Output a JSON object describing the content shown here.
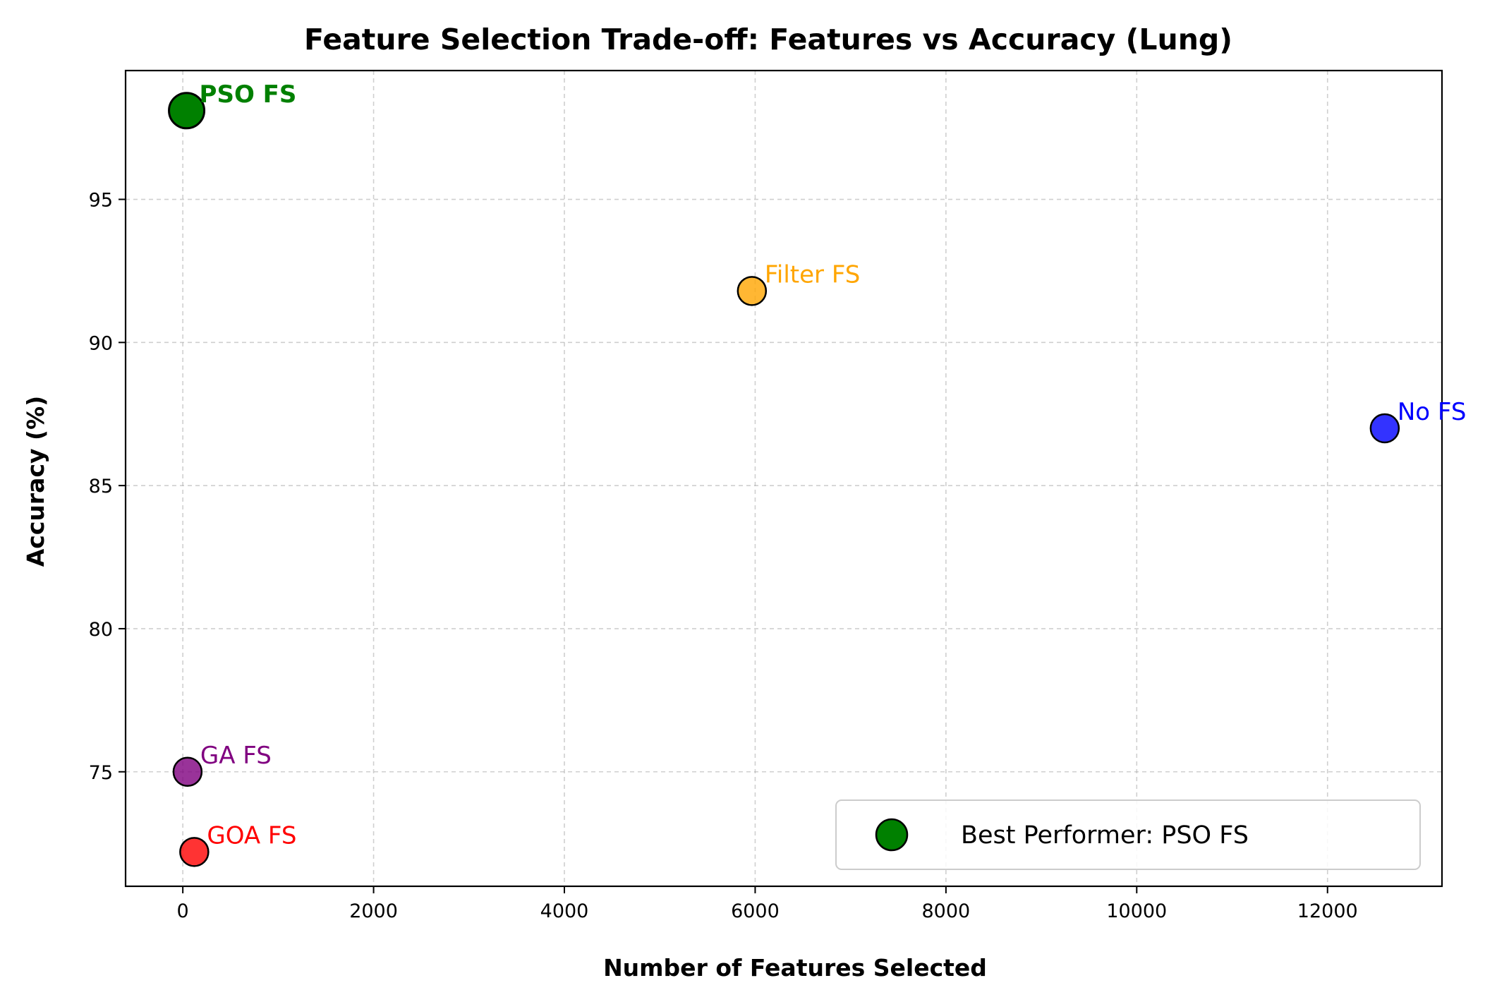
{
  "chart_data": {
    "type": "scatter",
    "title": "Feature Selection Trade-off: Features vs Accuracy (Lung)",
    "xlabel": "Number of Features Selected",
    "ylabel": "Accuracy (%)",
    "xlim": [
      -600,
      13200
    ],
    "ylim": [
      71.0,
      99.5
    ],
    "xticks": [
      0,
      2000,
      4000,
      6000,
      8000,
      10000,
      12000
    ],
    "xtick_labels": [
      "0",
      "2000",
      "4000",
      "6000",
      "8000",
      "10000",
      "12000"
    ],
    "yticks": [
      75,
      80,
      85,
      90,
      95
    ],
    "ytick_labels": [
      "75",
      "80",
      "85",
      "90",
      "95"
    ],
    "grid": true,
    "legend_position": "lower-right",
    "points": [
      {
        "label": "No FS",
        "x": 12600,
        "y": 87.0,
        "color": "#0000ff",
        "best": false
      },
      {
        "label": "Filter FS",
        "x": 5966,
        "y": 91.8,
        "color": "#ffa500",
        "best": false
      },
      {
        "label": "GA FS",
        "x": 50,
        "y": 75.0,
        "color": "#800080",
        "best": false
      },
      {
        "label": "GOA FS",
        "x": 120,
        "y": 72.2,
        "color": "#ff0000",
        "best": false
      },
      {
        "label": "PSO FS",
        "x": 40,
        "y": 98.1,
        "color": "#008000",
        "best": true
      }
    ],
    "legend": [
      {
        "label": "Best Performer: PSO FS",
        "color": "#008000"
      }
    ]
  }
}
